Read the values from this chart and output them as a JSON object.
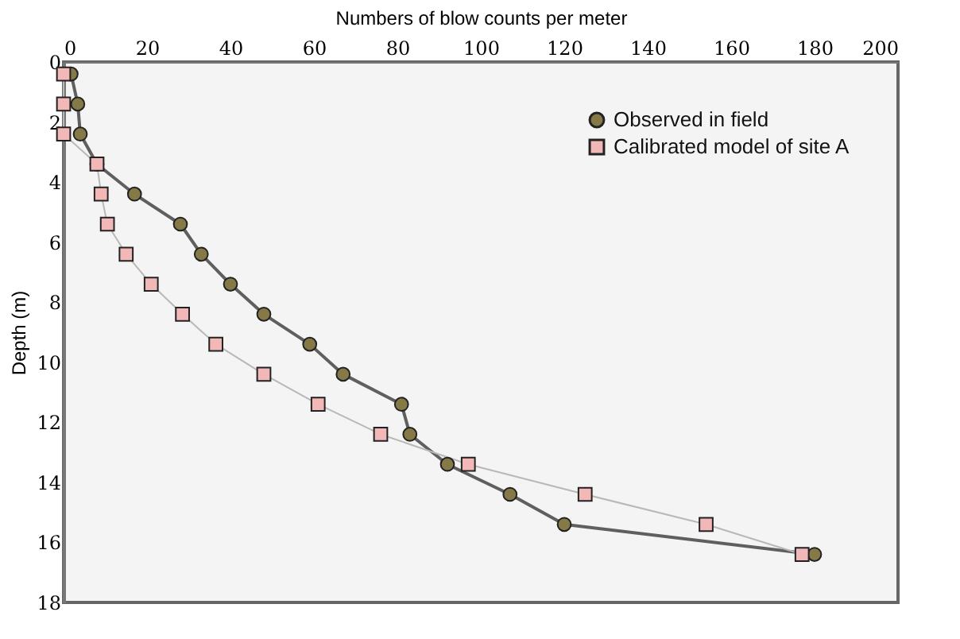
{
  "chart_data": {
    "type": "line",
    "xlabel": "Numbers of blow counts per meter",
    "ylabel": "Depth (m)",
    "xlim": [
      0,
      200
    ],
    "xticks": [
      0,
      20,
      40,
      60,
      80,
      100,
      120,
      140,
      160,
      180,
      200
    ],
    "ylim": [
      18,
      0
    ],
    "yticks": [
      0,
      2,
      4,
      6,
      8,
      10,
      12,
      14,
      16,
      18
    ],
    "grid": false,
    "legend": "top right",
    "line_style": "solid",
    "series": [
      {
        "name": "Observed in field",
        "color": "#857a47",
        "marker": "circle",
        "x": [
          1.8,
          3.4,
          4,
          8,
          17,
          28,
          33,
          40,
          48,
          59,
          67,
          81,
          83,
          92,
          107,
          120,
          180
        ],
        "values": [
          0.4,
          1.4,
          2.4,
          3.4,
          4.4,
          5.4,
          6.4,
          7.4,
          8.4,
          9.4,
          10.4,
          11.4,
          12.4,
          13.4,
          14.4,
          15.4,
          16.4
        ]
      },
      {
        "name": "Calibrated model of site A",
        "color": "#f2b8b8",
        "marker": "square",
        "x": [
          0,
          0,
          0,
          8,
          9,
          10.5,
          15,
          21,
          28.5,
          36.5,
          48,
          61,
          76,
          97,
          125,
          154,
          177
        ],
        "values": [
          0.4,
          1.4,
          2.4,
          3.4,
          4.4,
          5.4,
          6.4,
          7.4,
          8.4,
          9.4,
          10.4,
          11.4,
          12.4,
          13.4,
          14.4,
          15.4,
          16.4
        ]
      }
    ]
  }
}
